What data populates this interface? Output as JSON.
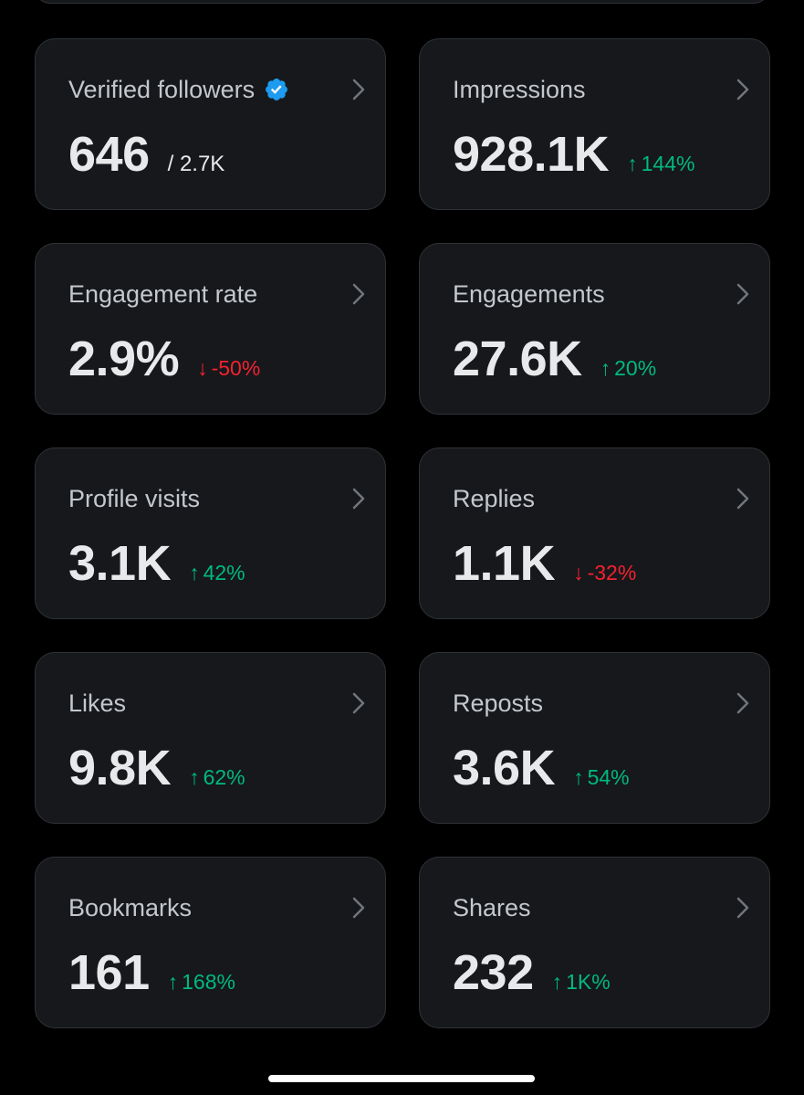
{
  "colors": {
    "background": "#000000",
    "card": "#16181c",
    "border": "#2f3336",
    "up": "#00ba7c",
    "down": "#f4212e",
    "verified": "#1d9bf0"
  },
  "cards": [
    {
      "title": "Verified followers",
      "value": "646",
      "secondary": "/ 2.7K",
      "icon": "verified-badge-icon"
    },
    {
      "title": "Impressions",
      "value": "928.1K",
      "delta": "144%",
      "direction": "up"
    },
    {
      "title": "Engagement rate",
      "value": "2.9%",
      "delta": "-50%",
      "direction": "down"
    },
    {
      "title": "Engagements",
      "value": "27.6K",
      "delta": "20%",
      "direction": "up"
    },
    {
      "title": "Profile visits",
      "value": "3.1K",
      "delta": "42%",
      "direction": "up"
    },
    {
      "title": "Replies",
      "value": "1.1K",
      "delta": "-32%",
      "direction": "down"
    },
    {
      "title": "Likes",
      "value": "9.8K",
      "delta": "62%",
      "direction": "up"
    },
    {
      "title": "Reposts",
      "value": "3.6K",
      "delta": "54%",
      "direction": "up"
    },
    {
      "title": "Bookmarks",
      "value": "161",
      "delta": "168%",
      "direction": "up"
    },
    {
      "title": "Shares",
      "value": "232",
      "delta": "1K%",
      "direction": "up"
    }
  ],
  "arrows": {
    "up": "↑",
    "down": "↓"
  }
}
